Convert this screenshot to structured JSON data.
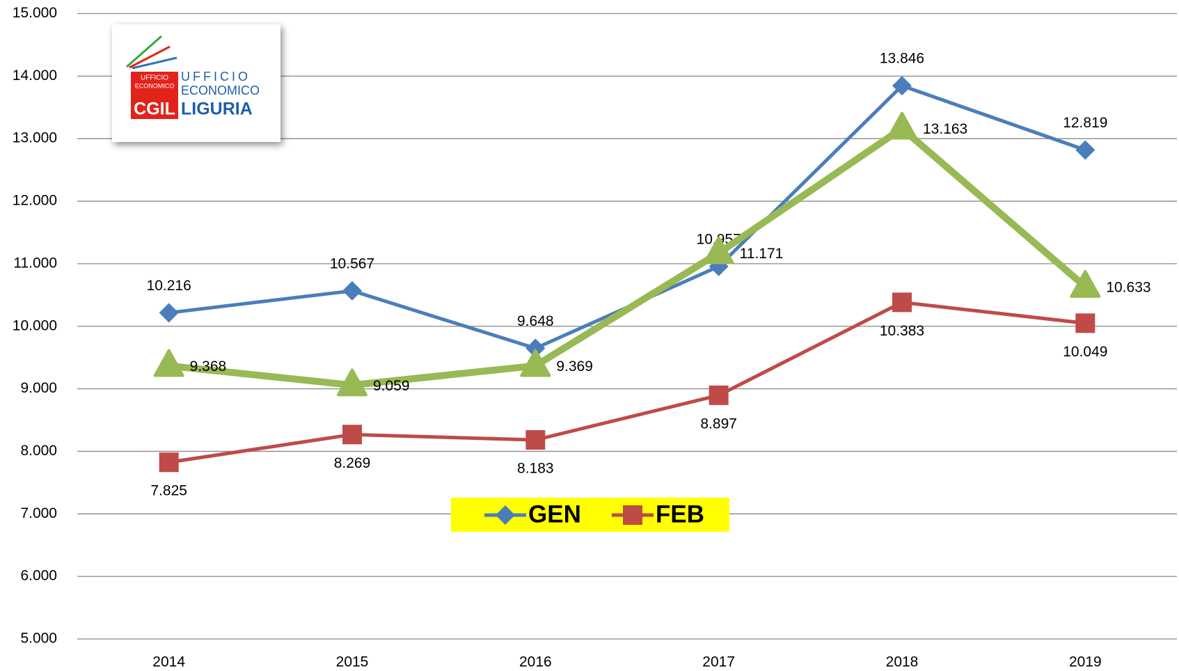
{
  "chart_data": {
    "type": "line",
    "categories": [
      "2014",
      "2015",
      "2016",
      "2017",
      "2018",
      "2019"
    ],
    "series": [
      {
        "name": "GEN",
        "color": "#4a7ebb",
        "marker": "diamond",
        "values": [
          10216,
          10567,
          9648,
          10957,
          13846,
          12819
        ],
        "value_labels": [
          "10.216",
          "10.567",
          "9.648",
          "10.957",
          "13.846",
          "12.819"
        ]
      },
      {
        "name": "FEB",
        "color": "#be4b48",
        "marker": "square",
        "values": [
          7825,
          8269,
          8183,
          8897,
          10383,
          10049
        ],
        "value_labels": [
          "7.825",
          "8.269",
          "8.183",
          "8.897",
          "10.383",
          "10.049"
        ]
      },
      {
        "color": "#98b954",
        "marker": "triangle",
        "values": [
          9368,
          9059,
          9369,
          11171,
          13163,
          10633
        ],
        "value_labels": [
          "9.368",
          "9.059",
          "9.369",
          "11.171",
          "13.163",
          "10.633"
        ]
      }
    ],
    "ylim": [
      5000,
      15000
    ],
    "yticks": [
      {
        "value": 5000,
        "label": "5.000"
      },
      {
        "value": 6000,
        "label": "6.000"
      },
      {
        "value": 7000,
        "label": "7.000"
      },
      {
        "value": 8000,
        "label": "8.000"
      },
      {
        "value": 9000,
        "label": "9.000"
      },
      {
        "value": 10000,
        "label": "10.000"
      },
      {
        "value": 11000,
        "label": "11.000"
      },
      {
        "value": 12000,
        "label": "12.000"
      },
      {
        "value": 13000,
        "label": "13.000"
      },
      {
        "value": 14000,
        "label": "14.000"
      },
      {
        "value": 15000,
        "label": "15.000"
      }
    ],
    "grid": true,
    "legend_background": "#ffff00"
  },
  "logo": {
    "badge_top": "UFFICIO",
    "badge_bottom": "ECONOMICO",
    "line1": "UFFICIO",
    "line2": "ECONOMICO",
    "brand": "CGIL",
    "region": "LIGURIA"
  }
}
